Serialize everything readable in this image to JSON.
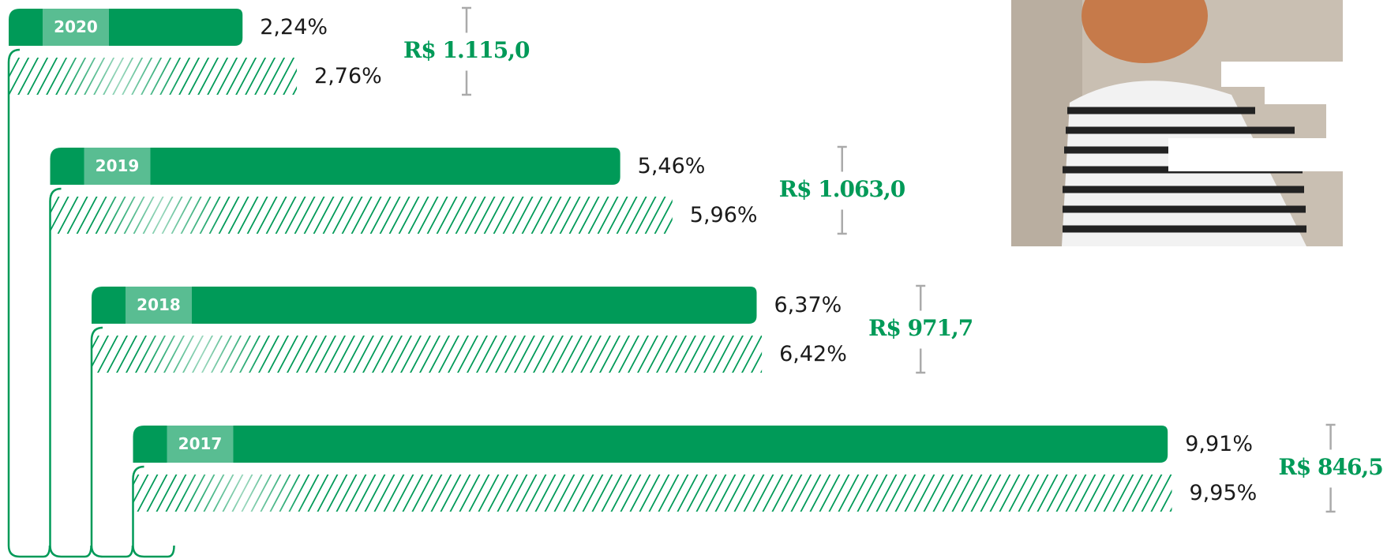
{
  "chart_data": {
    "type": "bar",
    "categories": [
      "2020",
      "2019",
      "2018",
      "2017"
    ],
    "series": [
      {
        "color": "#009a58",
        "values": [
          2.24,
          5.46,
          6.37,
          9.91
        ],
        "value_labels": [
          "2,24%",
          "5,46%",
          "6,37%",
          "9,91%"
        ]
      },
      {
        "color": "#009a58",
        "hatched": true,
        "values": [
          2.76,
          5.96,
          6.42,
          9.95
        ],
        "value_labels": [
          "2,76%",
          "5,96%",
          "6,42%",
          "9,95%"
        ]
      }
    ],
    "totals": [
      "R$ 1.115,0",
      "R$ 1.063,0",
      "R$ 971,7",
      "R$ 846,5"
    ]
  }
}
